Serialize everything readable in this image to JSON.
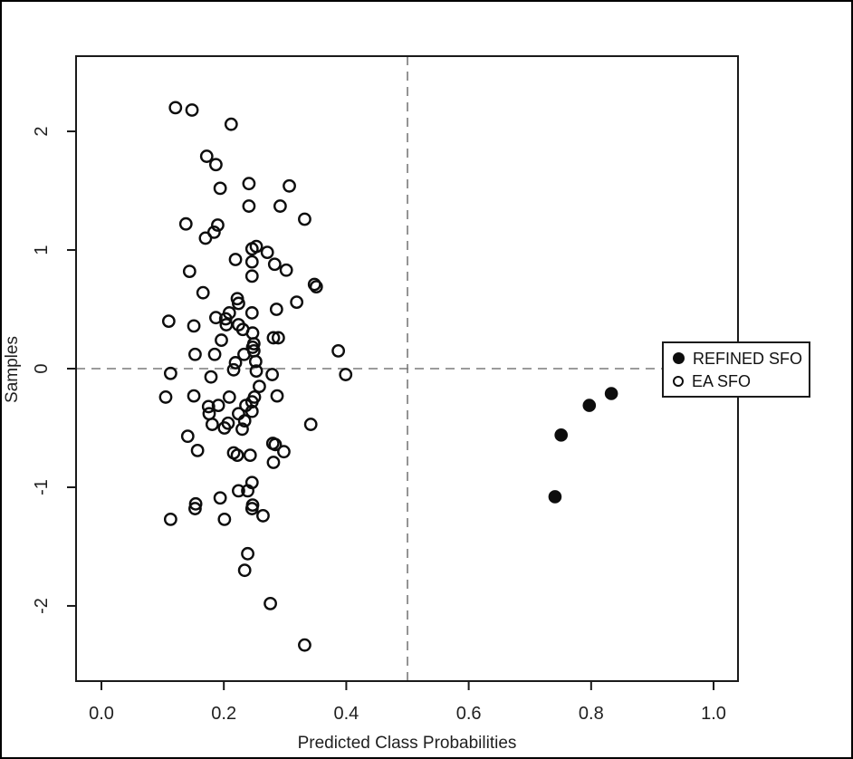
{
  "window": {
    "background": "#ffffff",
    "frame_border_color": "#000000",
    "axis_color": "#1a1a1a",
    "tick_label_color": "#1f1f1f",
    "dashed_line_color": "#7a7a7a"
  },
  "legend": {
    "items": [
      {
        "label": "REFINED SFO",
        "marker": "filled-circle"
      },
      {
        "label": "EA SFO",
        "marker": "open-circle"
      }
    ]
  },
  "chart_data": {
    "type": "scatter",
    "title": "",
    "xlabel": "Predicted Class Probabilities",
    "ylabel": "Samples",
    "xlim": [
      -0.0414,
      1.0399
    ],
    "ylim": [
      -2.634,
      2.634
    ],
    "grid": false,
    "legend_position": "right-middle",
    "x_ticks": {
      "values": [
        0.0,
        0.2,
        0.4,
        0.6,
        0.8,
        1.0
      ],
      "labels": [
        "0.0",
        "0.2",
        "0.4",
        "0.6",
        "0.8",
        "1.0"
      ]
    },
    "y_ticks": {
      "values": [
        -2,
        -1,
        0,
        1,
        2
      ],
      "labels": [
        "-2",
        "-1",
        "0",
        "1",
        "2"
      ]
    },
    "reference_lines": [
      {
        "orientation": "vertical",
        "value": 0.5,
        "style": "dashed",
        "color": "#7a7a7a"
      },
      {
        "orientation": "horizontal",
        "value": 0.0,
        "style": "dashed",
        "color": "#7a7a7a"
      }
    ],
    "series": [
      {
        "name": "REFINED SFO",
        "marker": "filled-circle",
        "color": "#0d0d0d",
        "points": [
          [
            0.833,
            -0.21
          ],
          [
            0.797,
            -0.31
          ],
          [
            0.751,
            -0.56
          ],
          [
            0.741,
            -1.08
          ]
        ]
      },
      {
        "name": "EA SFO",
        "marker": "open-circle",
        "color": "#0d0d0d",
        "points": [
          [
            0.121,
            2.2
          ],
          [
            0.148,
            2.18
          ],
          [
            0.212,
            2.06
          ],
          [
            0.172,
            1.79
          ],
          [
            0.187,
            1.72
          ],
          [
            0.194,
            1.52
          ],
          [
            0.241,
            1.56
          ],
          [
            0.307,
            1.54
          ],
          [
            0.241,
            1.37
          ],
          [
            0.292,
            1.37
          ],
          [
            0.332,
            1.26
          ],
          [
            0.138,
            1.22
          ],
          [
            0.19,
            1.21
          ],
          [
            0.184,
            1.15
          ],
          [
            0.17,
            1.1
          ],
          [
            0.253,
            1.03
          ],
          [
            0.246,
            1.01
          ],
          [
            0.271,
            0.98
          ],
          [
            0.219,
            0.92
          ],
          [
            0.246,
            0.9
          ],
          [
            0.283,
            0.88
          ],
          [
            0.302,
            0.83
          ],
          [
            0.144,
            0.82
          ],
          [
            0.246,
            0.78
          ],
          [
            0.348,
            0.71
          ],
          [
            0.351,
            0.69
          ],
          [
            0.166,
            0.64
          ],
          [
            0.222,
            0.59
          ],
          [
            0.224,
            0.55
          ],
          [
            0.319,
            0.56
          ],
          [
            0.286,
            0.5
          ],
          [
            0.246,
            0.47
          ],
          [
            0.11,
            0.4
          ],
          [
            0.187,
            0.43
          ],
          [
            0.203,
            0.42
          ],
          [
            0.209,
            0.47
          ],
          [
            0.151,
            0.36
          ],
          [
            0.204,
            0.37
          ],
          [
            0.224,
            0.37
          ],
          [
            0.231,
            0.33
          ],
          [
            0.247,
            0.3
          ],
          [
            0.196,
            0.24
          ],
          [
            0.249,
            0.21
          ],
          [
            0.281,
            0.26
          ],
          [
            0.289,
            0.26
          ],
          [
            0.247,
            0.18
          ],
          [
            0.153,
            0.12
          ],
          [
            0.185,
            0.12
          ],
          [
            0.233,
            0.12
          ],
          [
            0.249,
            0.15
          ],
          [
            0.219,
            0.05
          ],
          [
            0.252,
            0.06
          ],
          [
            0.387,
            0.15
          ],
          [
            0.113,
            -0.04
          ],
          [
            0.179,
            -0.07
          ],
          [
            0.216,
            -0.01
          ],
          [
            0.253,
            -0.02
          ],
          [
            0.279,
            -0.05
          ],
          [
            0.399,
            -0.05
          ],
          [
            0.105,
            -0.24
          ],
          [
            0.151,
            -0.23
          ],
          [
            0.209,
            -0.24
          ],
          [
            0.258,
            -0.15
          ],
          [
            0.25,
            -0.24
          ],
          [
            0.287,
            -0.23
          ],
          [
            0.175,
            -0.32
          ],
          [
            0.191,
            -0.31
          ],
          [
            0.236,
            -0.31
          ],
          [
            0.246,
            -0.28
          ],
          [
            0.176,
            -0.38
          ],
          [
            0.224,
            -0.38
          ],
          [
            0.246,
            -0.36
          ],
          [
            0.181,
            -0.47
          ],
          [
            0.207,
            -0.46
          ],
          [
            0.234,
            -0.44
          ],
          [
            0.201,
            -0.5
          ],
          [
            0.23,
            -0.51
          ],
          [
            0.342,
            -0.47
          ],
          [
            0.141,
            -0.57
          ],
          [
            0.28,
            -0.63
          ],
          [
            0.284,
            -0.64
          ],
          [
            0.157,
            -0.69
          ],
          [
            0.216,
            -0.71
          ],
          [
            0.222,
            -0.73
          ],
          [
            0.243,
            -0.73
          ],
          [
            0.298,
            -0.7
          ],
          [
            0.281,
            -0.79
          ],
          [
            0.246,
            -0.96
          ],
          [
            0.224,
            -1.03
          ],
          [
            0.239,
            -1.03
          ],
          [
            0.194,
            -1.09
          ],
          [
            0.154,
            -1.14
          ],
          [
            0.247,
            -1.15
          ],
          [
            0.113,
            -1.27
          ],
          [
            0.153,
            -1.18
          ],
          [
            0.201,
            -1.27
          ],
          [
            0.246,
            -1.18
          ],
          [
            0.264,
            -1.24
          ],
          [
            0.239,
            -1.56
          ],
          [
            0.234,
            -1.7
          ],
          [
            0.276,
            -1.98
          ],
          [
            0.332,
            -2.33
          ]
        ]
      }
    ]
  }
}
